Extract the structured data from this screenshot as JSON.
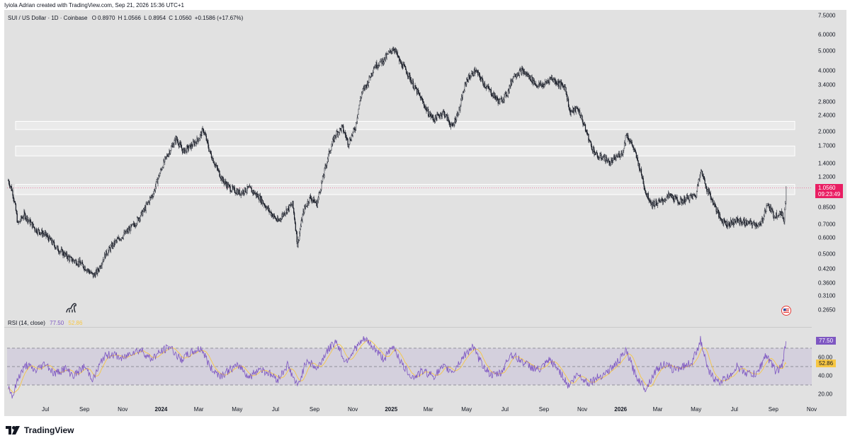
{
  "header": {
    "credit": "Iyiola Adrian created with TradingView.com, Sep 21, 2026 15:36 UTC+1"
  },
  "legend": {
    "symbol": "SUI / US Dollar · 1D · Coinbase",
    "open_k": "O",
    "open_v": "0.8970",
    "high_k": "H",
    "high_v": "1.0566",
    "low_k": "L",
    "low_v": "0.8954",
    "close_k": "C",
    "close_v": "1.0560",
    "change": "+0.1586 (+17.67%)"
  },
  "rsi_legend": {
    "label": "RSI (14, close)",
    "rsi_value": "77.50",
    "ma_value": "52.86"
  },
  "price_badge": {
    "price": "1.0560",
    "countdown": "09:23:49"
  },
  "rsi_badges": {
    "rsi": "77.50",
    "ma": "52.86"
  },
  "price_axis_labels": [
    "7.5000",
    "6.0000",
    "5.0000",
    "4.0000",
    "3.4000",
    "2.8000",
    "2.4000",
    "2.0000",
    "1.7000",
    "1.4000",
    "1.2000",
    "0.8500",
    "0.7000",
    "0.6000",
    "0.5000",
    "0.4200",
    "0.3600",
    "0.3100",
    "0.2650"
  ],
  "rsi_axis_labels": [
    "60.00",
    "40.00",
    "20.00"
  ],
  "time_labels": [
    {
      "text": "Jul",
      "bold": false
    },
    {
      "text": "Sep",
      "bold": false
    },
    {
      "text": "Nov",
      "bold": false
    },
    {
      "text": "2024",
      "bold": true
    },
    {
      "text": "Mar",
      "bold": false
    },
    {
      "text": "May",
      "bold": false
    },
    {
      "text": "Jul",
      "bold": false
    },
    {
      "text": "Sep",
      "bold": false
    },
    {
      "text": "Nov",
      "bold": false
    },
    {
      "text": "2025",
      "bold": true
    },
    {
      "text": "Mar",
      "bold": false
    },
    {
      "text": "May",
      "bold": false
    },
    {
      "text": "Jul",
      "bold": false
    },
    {
      "text": "Sep",
      "bold": false
    },
    {
      "text": "Nov",
      "bold": false
    },
    {
      "text": "2026",
      "bold": true
    },
    {
      "text": "Mar",
      "bold": false
    },
    {
      "text": "May",
      "bold": false
    },
    {
      "text": "Jul",
      "bold": false
    },
    {
      "text": "Sep",
      "bold": false
    },
    {
      "text": "Nov",
      "bold": false
    }
  ],
  "footer": {
    "brand": "TradingView"
  },
  "icons": {
    "brand_logo": "tradingview-logo-icon",
    "dino": "dino-icon",
    "flag": "us-flag-icon"
  },
  "colors": {
    "candle": "#131722",
    "rsi_line": "#7e57c2",
    "rsi_ma": "#f7c744",
    "price_badge": "#e91e63",
    "zone_fill": "#f2f2f2"
  },
  "chart_data": {
    "type": "candlestick",
    "symbol": "SUI / US Dollar",
    "interval": "1D",
    "exchange": "Coinbase",
    "scale": "log",
    "ylim": [
      0.24,
      7.6
    ],
    "x_range": [
      "2023-05-01",
      "2026-11-01"
    ],
    "last": {
      "open": 0.897,
      "high": 1.0566,
      "low": 0.8954,
      "close": 1.056
    },
    "zones": [
      {
        "low": 2.05,
        "high": 2.25
      },
      {
        "low": 1.52,
        "high": 1.7
      },
      {
        "low": 0.98,
        "high": 1.1
      }
    ],
    "price_path": [
      [
        "2023-05-03",
        1.15
      ],
      [
        "2023-05-10",
        1.0
      ],
      [
        "2023-05-18",
        0.7
      ],
      [
        "2023-05-28",
        0.78
      ],
      [
        "2023-06-15",
        0.66
      ],
      [
        "2023-07-01",
        0.62
      ],
      [
        "2023-07-20",
        0.53
      ],
      [
        "2023-08-10",
        0.47
      ],
      [
        "2023-08-25",
        0.45
      ],
      [
        "2023-09-05",
        0.42
      ],
      [
        "2023-09-15",
        0.39
      ],
      [
        "2023-09-22",
        0.41
      ],
      [
        "2023-10-05",
        0.5
      ],
      [
        "2023-10-20",
        0.57
      ],
      [
        "2023-11-05",
        0.63
      ],
      [
        "2023-11-20",
        0.7
      ],
      [
        "2023-12-05",
        0.82
      ],
      [
        "2023-12-20",
        1.0
      ],
      [
        "2024-01-05",
        1.4
      ],
      [
        "2024-01-15",
        1.62
      ],
      [
        "2024-01-25",
        1.85
      ],
      [
        "2024-02-05",
        1.6
      ],
      [
        "2024-02-18",
        1.7
      ],
      [
        "2024-03-01",
        1.85
      ],
      [
        "2024-03-08",
        2.05
      ],
      [
        "2024-03-18",
        1.6
      ],
      [
        "2024-03-28",
        1.35
      ],
      [
        "2024-04-08",
        1.15
      ],
      [
        "2024-04-20",
        1.05
      ],
      [
        "2024-05-05",
        1.0
      ],
      [
        "2024-05-20",
        1.05
      ],
      [
        "2024-06-05",
        0.95
      ],
      [
        "2024-06-20",
        0.82
      ],
      [
        "2024-07-05",
        0.72
      ],
      [
        "2024-07-15",
        0.8
      ],
      [
        "2024-07-28",
        0.88
      ],
      [
        "2024-08-05",
        0.55
      ],
      [
        "2024-08-15",
        0.82
      ],
      [
        "2024-08-25",
        0.95
      ],
      [
        "2024-09-05",
        0.88
      ],
      [
        "2024-09-15",
        1.2
      ],
      [
        "2024-09-25",
        1.6
      ],
      [
        "2024-10-05",
        1.95
      ],
      [
        "2024-10-15",
        2.1
      ],
      [
        "2024-10-25",
        1.75
      ],
      [
        "2024-11-05",
        2.1
      ],
      [
        "2024-11-15",
        3.1
      ],
      [
        "2024-11-25",
        3.5
      ],
      [
        "2024-12-05",
        4.2
      ],
      [
        "2024-12-20",
        4.5
      ],
      [
        "2025-01-05",
        5.2
      ],
      [
        "2025-01-15",
        4.4
      ],
      [
        "2025-01-25",
        4.0
      ],
      [
        "2025-02-05",
        3.4
      ],
      [
        "2025-02-15",
        3.0
      ],
      [
        "2025-02-28",
        2.5
      ],
      [
        "2025-03-10",
        2.3
      ],
      [
        "2025-03-25",
        2.5
      ],
      [
        "2025-04-08",
        2.1
      ],
      [
        "2025-04-20",
        2.6
      ],
      [
        "2025-05-01",
        3.6
      ],
      [
        "2025-05-15",
        4.0
      ],
      [
        "2025-05-30",
        3.4
      ],
      [
        "2025-06-10",
        3.1
      ],
      [
        "2025-06-22",
        2.8
      ],
      [
        "2025-07-05",
        3.1
      ],
      [
        "2025-07-15",
        3.8
      ],
      [
        "2025-07-28",
        4.0
      ],
      [
        "2025-08-10",
        3.7
      ],
      [
        "2025-08-20",
        3.4
      ],
      [
        "2025-09-01",
        3.4
      ],
      [
        "2025-09-12",
        3.7
      ],
      [
        "2025-09-22",
        3.5
      ],
      [
        "2025-10-05",
        3.3
      ],
      [
        "2025-10-12",
        2.5
      ],
      [
        "2025-10-25",
        2.6
      ],
      [
        "2025-11-05",
        2.1
      ],
      [
        "2025-11-15",
        1.7
      ],
      [
        "2025-11-25",
        1.5
      ],
      [
        "2025-12-05",
        1.5
      ],
      [
        "2025-12-15",
        1.4
      ],
      [
        "2026-01-05",
        1.6
      ],
      [
        "2026-01-10",
        1.95
      ],
      [
        "2026-01-20",
        1.7
      ],
      [
        "2026-02-01",
        1.3
      ],
      [
        "2026-02-10",
        1.0
      ],
      [
        "2026-02-20",
        0.88
      ],
      [
        "2026-03-05",
        0.9
      ],
      [
        "2026-03-20",
        0.97
      ],
      [
        "2026-04-05",
        0.9
      ],
      [
        "2026-04-20",
        0.95
      ],
      [
        "2026-05-01",
        0.97
      ],
      [
        "2026-05-08",
        1.3
      ],
      [
        "2026-05-18",
        1.05
      ],
      [
        "2026-05-28",
        0.9
      ],
      [
        "2026-06-08",
        0.75
      ],
      [
        "2026-06-20",
        0.7
      ],
      [
        "2026-07-05",
        0.73
      ],
      [
        "2026-07-20",
        0.71
      ],
      [
        "2026-08-05",
        0.7
      ],
      [
        "2026-08-12",
        0.69
      ],
      [
        "2026-08-22",
        0.88
      ],
      [
        "2026-09-02",
        0.77
      ],
      [
        "2026-09-12",
        0.8
      ],
      [
        "2026-09-18",
        0.74
      ],
      [
        "2026-09-20",
        0.897
      ],
      [
        "2026-09-21",
        1.056
      ]
    ],
    "rsi": {
      "params": "14, close",
      "upper_band": 70,
      "middle_band": 50,
      "lower_band": 30,
      "ylim": [
        10,
        90
      ],
      "last": 77.5,
      "ma_last": 52.86,
      "path": [
        [
          "2023-05-03",
          28
        ],
        [
          "2023-05-10",
          18
        ],
        [
          "2023-05-20",
          40
        ],
        [
          "2023-06-01",
          52
        ],
        [
          "2023-06-15",
          45
        ],
        [
          "2023-07-01",
          54
        ],
        [
          "2023-07-15",
          42
        ],
        [
          "2023-08-01",
          48
        ],
        [
          "2023-08-15",
          40
        ],
        [
          "2023-09-01",
          50
        ],
        [
          "2023-09-15",
          36
        ],
        [
          "2023-10-01",
          60
        ],
        [
          "2023-10-15",
          64
        ],
        [
          "2023-11-01",
          58
        ],
        [
          "2023-11-15",
          66
        ],
        [
          "2023-12-01",
          68
        ],
        [
          "2023-12-15",
          58
        ],
        [
          "2024-01-01",
          66
        ],
        [
          "2024-01-15",
          72
        ],
        [
          "2024-02-01",
          57
        ],
        [
          "2024-02-15",
          64
        ],
        [
          "2024-03-05",
          70
        ],
        [
          "2024-03-20",
          48
        ],
        [
          "2024-04-05",
          40
        ],
        [
          "2024-04-20",
          47
        ],
        [
          "2024-05-05",
          51
        ],
        [
          "2024-05-20",
          38
        ],
        [
          "2024-06-05",
          48
        ],
        [
          "2024-06-20",
          43
        ],
        [
          "2024-07-05",
          36
        ],
        [
          "2024-07-20",
          52
        ],
        [
          "2024-08-05",
          28
        ],
        [
          "2024-08-20",
          58
        ],
        [
          "2024-09-05",
          47
        ],
        [
          "2024-09-20",
          66
        ],
        [
          "2024-10-05",
          78
        ],
        [
          "2024-10-20",
          55
        ],
        [
          "2024-11-05",
          70
        ],
        [
          "2024-11-20",
          80
        ],
        [
          "2024-12-05",
          70
        ],
        [
          "2024-12-20",
          58
        ],
        [
          "2025-01-05",
          72
        ],
        [
          "2025-01-20",
          50
        ],
        [
          "2025-02-05",
          38
        ],
        [
          "2025-02-20",
          45
        ],
        [
          "2025-03-10",
          40
        ],
        [
          "2025-03-25",
          49
        ],
        [
          "2025-04-10",
          45
        ],
        [
          "2025-04-25",
          60
        ],
        [
          "2025-05-10",
          72
        ],
        [
          "2025-05-25",
          53
        ],
        [
          "2025-06-10",
          40
        ],
        [
          "2025-06-25",
          43
        ],
        [
          "2025-07-10",
          64
        ],
        [
          "2025-07-25",
          57
        ],
        [
          "2025-08-10",
          50
        ],
        [
          "2025-08-25",
          46
        ],
        [
          "2025-09-10",
          57
        ],
        [
          "2025-09-25",
          46
        ],
        [
          "2025-10-10",
          29
        ],
        [
          "2025-10-25",
          42
        ],
        [
          "2025-11-10",
          32
        ],
        [
          "2025-11-25",
          38
        ],
        [
          "2025-12-10",
          44
        ],
        [
          "2025-12-25",
          53
        ],
        [
          "2026-01-10",
          67
        ],
        [
          "2026-01-25",
          40
        ],
        [
          "2026-02-10",
          26
        ],
        [
          "2026-02-25",
          45
        ],
        [
          "2026-03-10",
          53
        ],
        [
          "2026-03-25",
          47
        ],
        [
          "2026-04-10",
          50
        ],
        [
          "2026-04-25",
          55
        ],
        [
          "2026-05-08",
          79
        ],
        [
          "2026-05-20",
          45
        ],
        [
          "2026-06-05",
          33
        ],
        [
          "2026-06-20",
          38
        ],
        [
          "2026-07-05",
          50
        ],
        [
          "2026-07-20",
          43
        ],
        [
          "2026-08-05",
          41
        ],
        [
          "2026-08-20",
          63
        ],
        [
          "2026-09-05",
          45
        ],
        [
          "2026-09-15",
          50
        ],
        [
          "2026-09-21",
          77.5
        ]
      ]
    }
  }
}
